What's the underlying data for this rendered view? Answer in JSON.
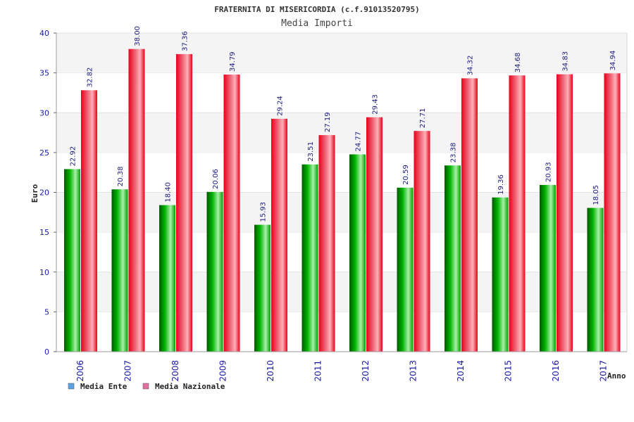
{
  "chart_data": {
    "type": "bar",
    "title": "FRATERNITA DI MISERICORDIA (c.f.91013520795)",
    "subtitle": "Media Importi",
    "xlabel": "Anno",
    "ylabel": "Euro",
    "ylim": [
      0,
      40
    ],
    "yticks": [
      "0",
      "5",
      "10",
      "15",
      "20",
      "25",
      "30",
      "35",
      "40"
    ],
    "grid": true,
    "legend_position": "bottom-left",
    "categories": [
      "2006",
      "2007",
      "2008",
      "2009",
      "2010",
      "2011",
      "2012",
      "2013",
      "2014",
      "2015",
      "2016",
      "2017"
    ],
    "series": [
      {
        "name": "Media Ente",
        "color": "#00a000",
        "legend_color": "#5aa0e6",
        "values": [
          22.92,
          20.38,
          18.4,
          20.06,
          15.93,
          23.51,
          24.77,
          20.59,
          23.38,
          19.36,
          20.93,
          18.05
        ],
        "labels": [
          "22.92",
          "20.38",
          "18.40",
          "20.06",
          "15.93",
          "23.51",
          "24.77",
          "20.59",
          "23.38",
          "19.36",
          "20.93",
          "18.05"
        ]
      },
      {
        "name": "Media Nazionale",
        "color": "#e8001a",
        "legend_color": "#e070a0",
        "values": [
          32.82,
          38.0,
          37.36,
          34.79,
          29.24,
          27.19,
          29.43,
          27.71,
          34.32,
          34.68,
          34.83,
          34.94
        ],
        "labels": [
          "32.82",
          "38.00",
          "37.36",
          "34.79",
          "29.24",
          "27.19",
          "29.43",
          "27.71",
          "34.32",
          "34.68",
          "34.83",
          "34.94"
        ]
      }
    ]
  }
}
